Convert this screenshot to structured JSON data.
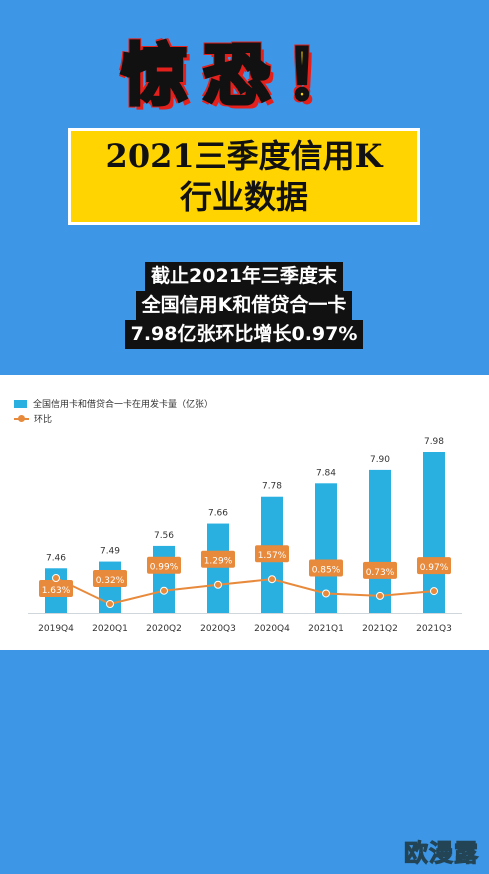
{
  "headline": "惊恐！",
  "title": {
    "line1": "2021三季度信用K",
    "line2": "行业数据"
  },
  "summary": {
    "line1": "截止2021年三季度末",
    "line2": "全国信用K和借贷合一卡",
    "line3": "7.98亿张环比增长0.97%"
  },
  "chart_data": {
    "type": "bar",
    "categories": [
      "2019Q4",
      "2020Q1",
      "2020Q2",
      "2020Q3",
      "2020Q4",
      "2021Q1",
      "2021Q2",
      "2021Q3"
    ],
    "series": [
      {
        "name": "全国信用卡和借贷合一卡在用发卡量（亿张）",
        "type": "bar",
        "values": [
          7.46,
          7.49,
          7.56,
          7.66,
          7.78,
          7.84,
          7.9,
          7.98
        ],
        "labels": [
          "7.46",
          "7.49",
          "7.56",
          "7.66",
          "7.78",
          "7.84",
          "7.90",
          "7.98"
        ],
        "color": "#29b0e1"
      },
      {
        "name": "环比",
        "type": "line",
        "values": [
          1.63,
          0.32,
          0.99,
          1.29,
          1.57,
          0.85,
          0.73,
          0.97
        ],
        "labels": [
          "1.63%",
          "0.32%",
          "0.99%",
          "1.29%",
          "1.57%",
          "0.85%",
          "0.73%",
          "0.97%"
        ],
        "color": "#e88a3c"
      }
    ],
    "legend_position": "top-left",
    "grid": false
  },
  "watermark": "欧漫露",
  "colors": {
    "background": "#3d96e6",
    "title_box": "#ffd400",
    "headline_outline": "#e3201b"
  }
}
